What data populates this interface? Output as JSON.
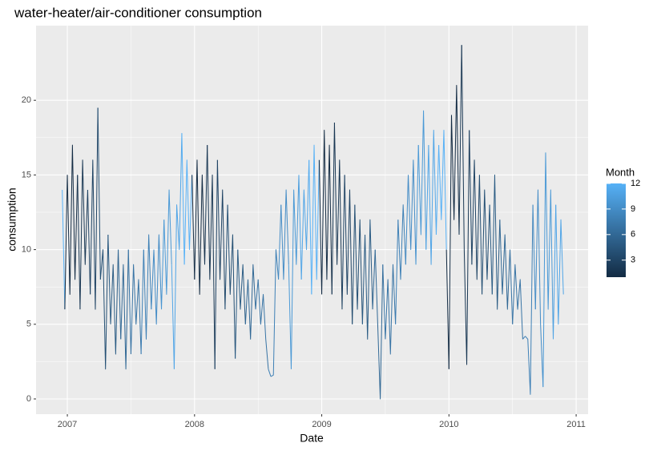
{
  "chart_data": {
    "type": "line",
    "title": "water-heater/air-conditioner consumption",
    "x_label": "Date",
    "y_label": "consumption",
    "x_start": 2006.96,
    "x_step": 0.02,
    "values": [
      14,
      6,
      15,
      7,
      17,
      8,
      15,
      6,
      16,
      9,
      14,
      7,
      16,
      6,
      19.5,
      8,
      10,
      2,
      11,
      5,
      9,
      3,
      10,
      4,
      9,
      2,
      10,
      3,
      9,
      5,
      8,
      3,
      10,
      4,
      11,
      6,
      10,
      5,
      11,
      6,
      12,
      7,
      14,
      9,
      2,
      13,
      10,
      17.8,
      9,
      16,
      10,
      15,
      8,
      16,
      7,
      15,
      9,
      17,
      8,
      15,
      2,
      16,
      8,
      14,
      6,
      13,
      7,
      11,
      2.7,
      10,
      6,
      9,
      5,
      8,
      4,
      9,
      6,
      8,
      5,
      7,
      4,
      2,
      1.5,
      1.6,
      10,
      8,
      13,
      8,
      14,
      9,
      2,
      14,
      9,
      15,
      8,
      14,
      10,
      16,
      7,
      17,
      8,
      16,
      7,
      18,
      8,
      17,
      7,
      18.5,
      9,
      16,
      6,
      15,
      7,
      14,
      5,
      13,
      6,
      12,
      5,
      11,
      4,
      12,
      6,
      10,
      5,
      0,
      9,
      4,
      8,
      3,
      9,
      5,
      12,
      8,
      13,
      9,
      15,
      10,
      16,
      9,
      17,
      11,
      19.3,
      10,
      17,
      9,
      18,
      11,
      17,
      12,
      18,
      10,
      2,
      19,
      12,
      21,
      11,
      23.7,
      10,
      2.3,
      18,
      9,
      16,
      8,
      15,
      7,
      14,
      8,
      13,
      7,
      15,
      6,
      12,
      7,
      11,
      6,
      10,
      5,
      9,
      6,
      8,
      4,
      4.2,
      4,
      0.3,
      13,
      6,
      14,
      5,
      0.8,
      16.5,
      6,
      14,
      4,
      13,
      5,
      12,
      7
    ],
    "xlim": [
      2006.754,
      2011.094
    ],
    "xticks": [
      2007,
      2008,
      2009,
      2010,
      2011
    ],
    "ylim": [
      -1.02,
      25
    ],
    "yticks": [
      0,
      5,
      10,
      15,
      20
    ],
    "grid": true,
    "color_scale": {
      "title": "Month",
      "low": "#132B43",
      "high": "#56B1F7",
      "limits": [
        1,
        12
      ],
      "ticks": [
        3,
        6,
        9,
        12
      ]
    }
  }
}
